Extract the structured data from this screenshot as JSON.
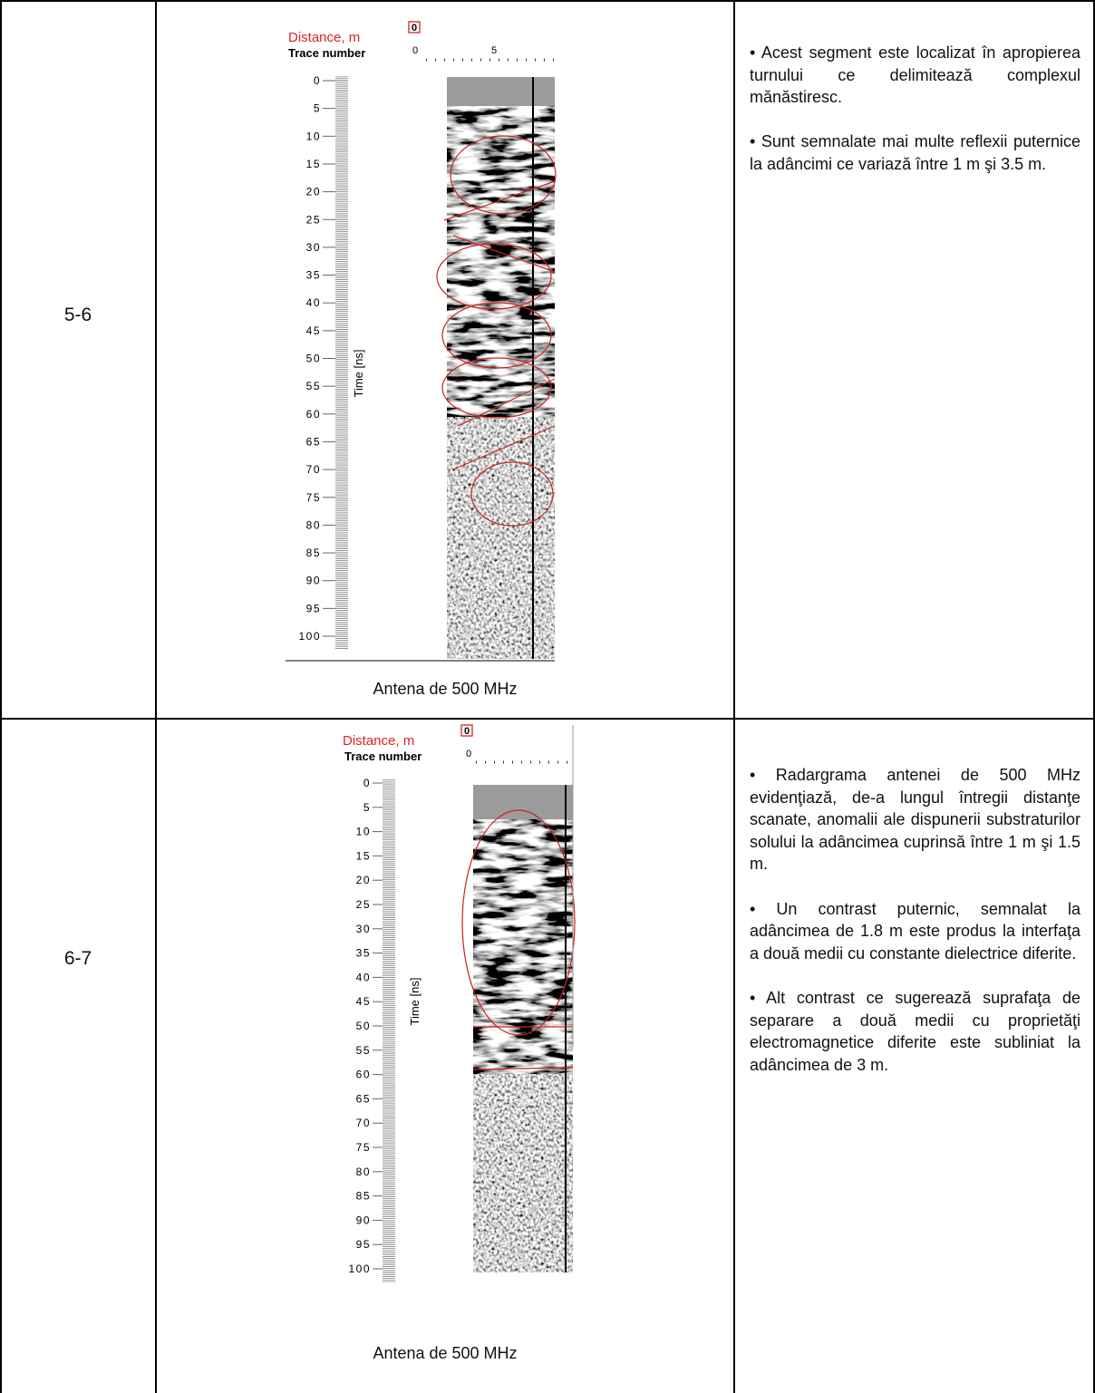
{
  "table": {
    "rows": [
      {
        "segment": "5-6",
        "figure": {
          "distance_label": "Distance, m",
          "distance_ticks": [
            0
          ],
          "trace_label": "Trace number",
          "trace_ticks": [
            0,
            5
          ],
          "time_label": "Time [ns]",
          "time_ticks": [
            0,
            5,
            10,
            15,
            20,
            25,
            30,
            35,
            40,
            45,
            50,
            55,
            60,
            65,
            70,
            75,
            80,
            85,
            90,
            95,
            100
          ]
        },
        "caption": "Antena de 500 MHz",
        "notes": [
          "• Acest segment este localizat în apropierea turnului ce delimitează complexul mănăstiresc.",
          "• Sunt semnalate mai multe reflexii puternice la adâncimi ce variază între 1 m şi 3.5 m."
        ]
      },
      {
        "segment": "6-7",
        "figure": {
          "distance_label": "Distance, m",
          "distance_ticks": [
            0
          ],
          "trace_label": "Trace number",
          "trace_ticks": [
            0
          ],
          "time_label": "Time [ns]",
          "time_ticks": [
            0,
            5,
            10,
            15,
            20,
            25,
            30,
            35,
            40,
            45,
            50,
            55,
            60,
            65,
            70,
            75,
            80,
            85,
            90,
            95,
            100
          ]
        },
        "caption": "Antena de 500 MHz",
        "notes": [
          "• Radargrama antenei de 500 MHz evidenţiază, de-a lungul întregii distanţe scanate, anomalii ale dispunerii substraturilor solului la adâncimea cuprinsă între 1 m şi 1.5 m.",
          "• Un contrast puternic, semnalat la adâncimea de 1.8 m este produs la interfaţa a două medii cu constante dielectrice diferite.",
          "• Alt contrast ce sugerează suprafaţa de separare a două medii cu proprietăţi electromagnetice diferite este subliniat la adâncimea de 3 m."
        ]
      }
    ]
  }
}
